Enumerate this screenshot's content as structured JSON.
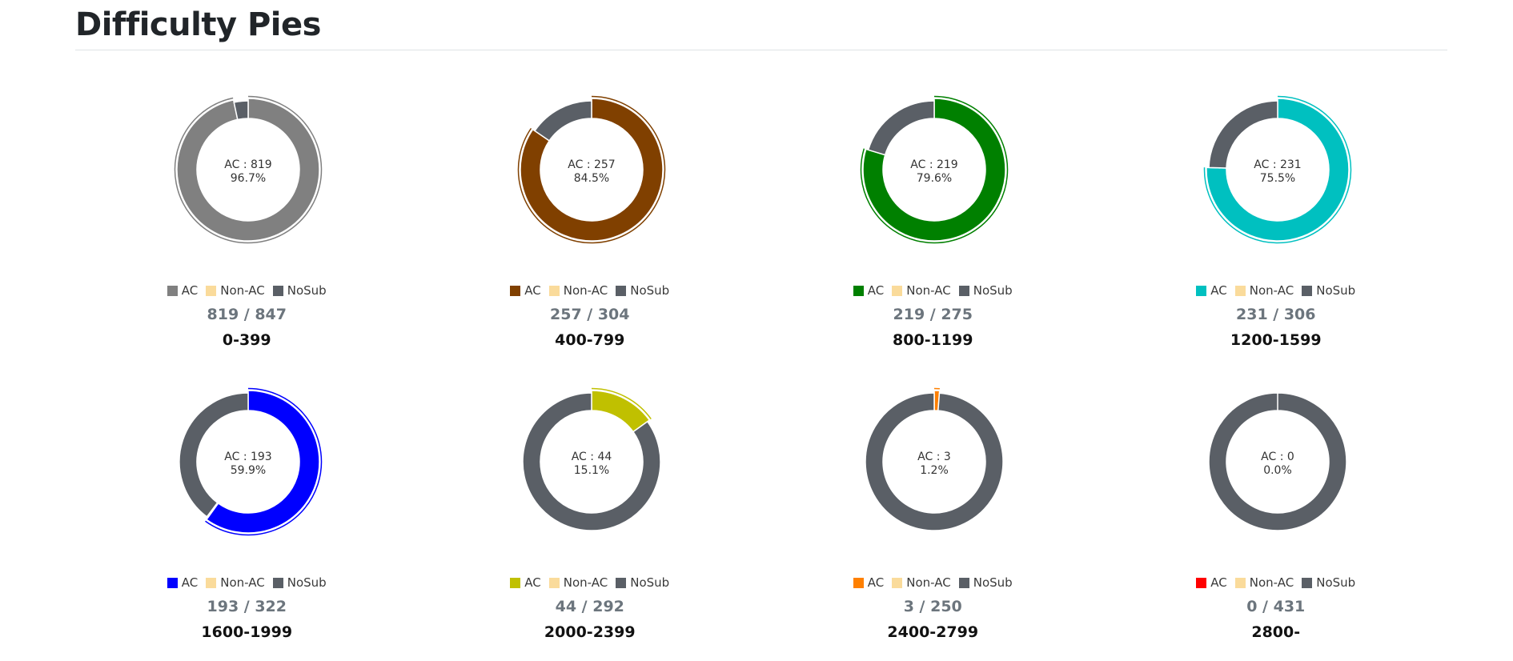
{
  "page": {
    "title": "Difficulty Pies"
  },
  "legend_labels": {
    "ac": "AC",
    "nonac": "Non-AC",
    "nosub": "NoSub"
  },
  "colors": {
    "nonac": "#fadb9b",
    "nosub": "#5a5f66"
  },
  "chart_data": [
    {
      "type": "pie",
      "title": "0-399",
      "range": "0-399",
      "series": [
        819,
        0,
        28
      ],
      "total": 847,
      "ratio_text": "819 / 847",
      "center_line1": "AC : 819",
      "center_line2": "96.7%",
      "ac_color": "#808080"
    },
    {
      "type": "pie",
      "title": "400-799",
      "range": "400-799",
      "series": [
        257,
        0,
        47
      ],
      "total": 304,
      "ratio_text": "257 / 304",
      "center_line1": "AC : 257",
      "center_line2": "84.5%",
      "ac_color": "#804000"
    },
    {
      "type": "pie",
      "title": "800-1199",
      "range": "800-1199",
      "series": [
        219,
        0,
        56
      ],
      "total": 275,
      "ratio_text": "219 / 275",
      "center_line1": "AC : 219",
      "center_line2": "79.6%",
      "ac_color": "#008000"
    },
    {
      "type": "pie",
      "title": "1200-1599",
      "range": "1200-1599",
      "series": [
        231,
        0,
        75
      ],
      "total": 306,
      "ratio_text": "231 / 306",
      "center_line1": "AC : 231",
      "center_line2": "75.5%",
      "ac_color": "#00c0c0"
    },
    {
      "type": "pie",
      "title": "1600-1999",
      "range": "1600-1999",
      "series": [
        193,
        1,
        128
      ],
      "total": 322,
      "ratio_text": "193 / 322",
      "center_line1": "AC : 193",
      "center_line2": "59.9%",
      "ac_color": "#0000ff"
    },
    {
      "type": "pie",
      "title": "2000-2399",
      "range": "2000-2399",
      "series": [
        44,
        0,
        248
      ],
      "total": 292,
      "ratio_text": "44 / 292",
      "center_line1": "AC : 44",
      "center_line2": "15.1%",
      "ac_color": "#c0c000"
    },
    {
      "type": "pie",
      "title": "2400-2799",
      "range": "2400-2799",
      "series": [
        3,
        0,
        247
      ],
      "total": 250,
      "ratio_text": "3 / 250",
      "center_line1": "AC : 3",
      "center_line2": "1.2%",
      "ac_color": "#ff8000"
    },
    {
      "type": "pie",
      "title": "2800-",
      "range": "2800-",
      "series": [
        0,
        0,
        431
      ],
      "total": 431,
      "ratio_text": "0 / 431",
      "center_line1": "AC : 0",
      "center_line2": "0.0%",
      "ac_color": "#ff0000"
    }
  ]
}
